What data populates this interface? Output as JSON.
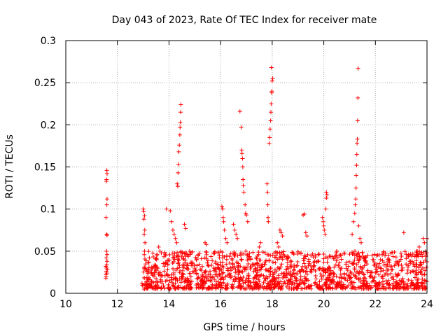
{
  "chart_data": {
    "type": "scatter",
    "title": "Day 043 of 2023, Rate Of TEC Index for receiver mate",
    "xlabel": "GPS time / hours",
    "ylabel": "ROTI / TECUs",
    "xlim": [
      10,
      24
    ],
    "ylim": [
      0,
      0.3
    ],
    "xticks": [
      10,
      12,
      14,
      16,
      18,
      20,
      22,
      24
    ],
    "yticks": [
      0,
      0.05,
      0.1,
      0.15,
      0.2,
      0.25,
      0.3
    ],
    "ytick_labels": [
      "0",
      "0.05",
      "0.1",
      "0.15",
      "0.2",
      "0.25",
      "0.3"
    ],
    "grid": true,
    "marker": "+",
    "color": "#ff0000",
    "series": [
      {
        "name": "ROTI",
        "points": [
          [
            11.55,
            0.018
          ],
          [
            11.56,
            0.022
          ],
          [
            11.57,
            0.026
          ],
          [
            11.58,
            0.03
          ],
          [
            11.59,
            0.034
          ],
          [
            11.6,
            0.038
          ],
          [
            11.57,
            0.042
          ],
          [
            11.6,
            0.046
          ],
          [
            11.58,
            0.05
          ],
          [
            11.56,
            0.02
          ],
          [
            11.59,
            0.024
          ],
          [
            11.61,
            0.028
          ],
          [
            11.55,
            0.032
          ],
          [
            11.58,
            0.07
          ],
          [
            11.6,
            0.069
          ],
          [
            11.56,
            0.09
          ],
          [
            11.59,
            0.105
          ],
          [
            11.6,
            0.112
          ],
          [
            11.57,
            0.133
          ],
          [
            11.58,
            0.135
          ],
          [
            11.6,
            0.142
          ],
          [
            11.59,
            0.146
          ],
          [
            13.0,
            0.1
          ],
          [
            13.02,
            0.097
          ],
          [
            13.05,
            0.092
          ],
          [
            13.03,
            0.088
          ],
          [
            13.06,
            0.075
          ],
          [
            13.04,
            0.07
          ],
          [
            13.07,
            0.06
          ],
          [
            13.05,
            0.05
          ],
          [
            13.9,
            0.1
          ],
          [
            14.05,
            0.098
          ],
          [
            14.1,
            0.085
          ],
          [
            14.15,
            0.075
          ],
          [
            14.2,
            0.07
          ],
          [
            14.25,
            0.065
          ],
          [
            14.3,
            0.06
          ],
          [
            14.6,
            0.082
          ],
          [
            14.65,
            0.077
          ],
          [
            14.32,
            0.13
          ],
          [
            14.34,
            0.127
          ],
          [
            14.35,
            0.143
          ],
          [
            14.37,
            0.153
          ],
          [
            14.38,
            0.168
          ],
          [
            14.4,
            0.176
          ],
          [
            14.42,
            0.188
          ],
          [
            14.43,
            0.197
          ],
          [
            14.44,
            0.203
          ],
          [
            14.45,
            0.215
          ],
          [
            14.46,
            0.224
          ],
          [
            16.05,
            0.103
          ],
          [
            16.08,
            0.1
          ],
          [
            16.1,
            0.09
          ],
          [
            16.12,
            0.085
          ],
          [
            16.15,
            0.075
          ],
          [
            16.2,
            0.065
          ],
          [
            16.25,
            0.06
          ],
          [
            16.5,
            0.082
          ],
          [
            16.55,
            0.075
          ],
          [
            16.75,
            0.216
          ],
          [
            16.8,
            0.197
          ],
          [
            16.82,
            0.17
          ],
          [
            16.83,
            0.166
          ],
          [
            16.85,
            0.16
          ],
          [
            16.86,
            0.15
          ],
          [
            16.87,
            0.135
          ],
          [
            16.88,
            0.128
          ],
          [
            16.9,
            0.12
          ],
          [
            16.95,
            0.105
          ],
          [
            16.97,
            0.095
          ],
          [
            17.0,
            0.093
          ],
          [
            17.05,
            0.085
          ],
          [
            17.8,
            0.13
          ],
          [
            17.82,
            0.12
          ],
          [
            17.83,
            0.105
          ],
          [
            17.84,
            0.09
          ],
          [
            17.85,
            0.085
          ],
          [
            17.88,
            0.178
          ],
          [
            17.9,
            0.185
          ],
          [
            17.92,
            0.195
          ],
          [
            17.94,
            0.205
          ],
          [
            17.96,
            0.225
          ],
          [
            17.98,
            0.238
          ],
          [
            18.0,
            0.252
          ],
          [
            18.02,
            0.255
          ],
          [
            17.97,
            0.268
          ],
          [
            17.95,
            0.215
          ],
          [
            17.99,
            0.24
          ],
          [
            18.3,
            0.075
          ],
          [
            18.35,
            0.072
          ],
          [
            18.4,
            0.068
          ],
          [
            18.2,
            0.06
          ],
          [
            18.25,
            0.055
          ],
          [
            19.2,
            0.093
          ],
          [
            19.25,
            0.094
          ],
          [
            19.3,
            0.072
          ],
          [
            19.35,
            0.068
          ],
          [
            19.95,
            0.09
          ],
          [
            19.98,
            0.085
          ],
          [
            20.0,
            0.08
          ],
          [
            20.02,
            0.075
          ],
          [
            20.05,
            0.07
          ],
          [
            20.08,
            0.1
          ],
          [
            20.1,
            0.113
          ],
          [
            20.12,
            0.117
          ],
          [
            20.1,
            0.12
          ],
          [
            21.2,
            0.095
          ],
          [
            21.22,
            0.105
          ],
          [
            21.24,
            0.112
          ],
          [
            21.25,
            0.125
          ],
          [
            21.26,
            0.14
          ],
          [
            21.27,
            0.152
          ],
          [
            21.28,
            0.165
          ],
          [
            21.29,
            0.178
          ],
          [
            21.3,
            0.183
          ],
          [
            21.31,
            0.205
          ],
          [
            21.32,
            0.232
          ],
          [
            21.33,
            0.267
          ],
          [
            21.15,
            0.085
          ],
          [
            21.1,
            0.07
          ],
          [
            21.35,
            0.08
          ],
          [
            21.4,
            0.065
          ],
          [
            21.45,
            0.06
          ],
          [
            23.1,
            0.072
          ],
          [
            23.85,
            0.065
          ],
          [
            23.9,
            0.06
          ],
          [
            24.0,
            0.065
          ],
          [
            23.7,
            0.055
          ],
          [
            23.6,
            0.05
          ],
          [
            22.3,
            0.048
          ],
          [
            22.5,
            0.045
          ],
          [
            22.8,
            0.043
          ],
          [
            22.2,
            0.04
          ],
          [
            21.7,
            0.045
          ],
          [
            21.9,
            0.04
          ],
          [
            15.4,
            0.06
          ],
          [
            15.45,
            0.058
          ],
          [
            16.6,
            0.07
          ],
          [
            16.65,
            0.065
          ],
          [
            17.5,
            0.055
          ],
          [
            17.55,
            0.06
          ],
          [
            19.5,
            0.045
          ],
          [
            20.5,
            0.05
          ],
          [
            20.8,
            0.048
          ],
          [
            13.6,
            0.055
          ],
          [
            13.65,
            0.05
          ],
          [
            14.8,
            0.05
          ],
          [
            15.9,
            0.048
          ]
        ],
        "band": {
          "x_start": 12.95,
          "x_end": 24.0,
          "base_min": 0.005,
          "base_max": 0.05,
          "count": 1500
        }
      }
    ]
  }
}
